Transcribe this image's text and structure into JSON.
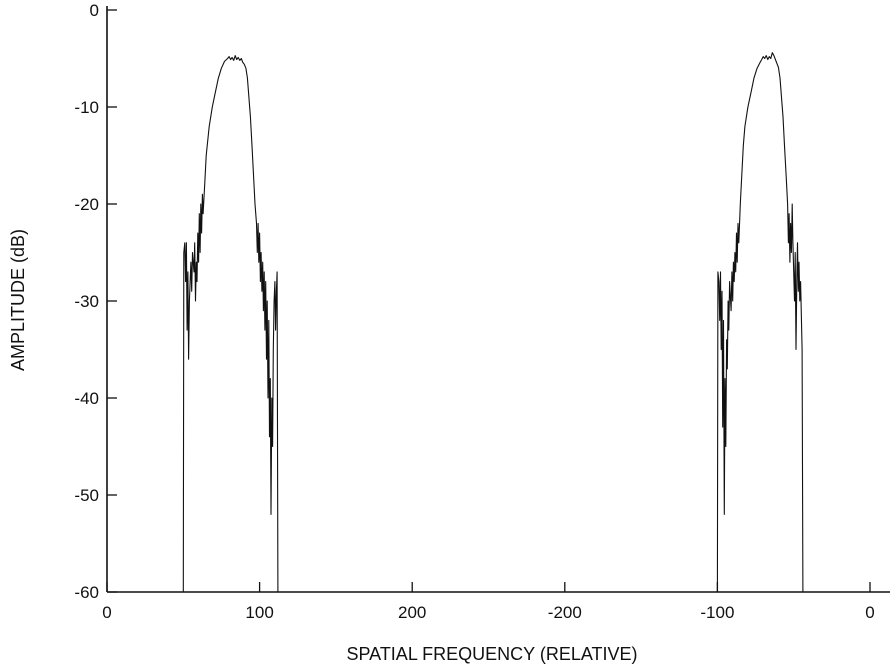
{
  "chart_data": {
    "type": "line",
    "xlabel": "SPATIAL FREQUENCY (RELATIVE)",
    "ylabel": "AMPLITUDE (dB)",
    "ylim": [
      -60,
      0
    ],
    "yticks": [
      0,
      -10,
      -20,
      -30,
      -40,
      -50,
      -60
    ],
    "xticks": [
      "0",
      "100",
      "200",
      "-200",
      "-100",
      "0"
    ],
    "xlim": [
      0,
      500
    ],
    "x_axis_note": "FFT-ordered frequency axis: positions 0..500 labeled 0,100,200,-200,-100,0",
    "grid": false,
    "legend": "none",
    "series": [
      {
        "points": [
          [
            50,
            -60
          ],
          [
            50.3,
            -25
          ],
          [
            51,
            -24
          ],
          [
            51.5,
            -28
          ],
          [
            52,
            -24
          ],
          [
            52.5,
            -33
          ],
          [
            53,
            -27
          ],
          [
            53.5,
            -36
          ],
          [
            54,
            -30
          ],
          [
            55,
            -26
          ],
          [
            55.5,
            -29
          ],
          [
            56,
            -25
          ],
          [
            57,
            -27
          ],
          [
            57.5,
            -24
          ],
          [
            58,
            -30
          ],
          [
            58.5,
            -26
          ],
          [
            59,
            -28
          ],
          [
            59.5,
            -23
          ],
          [
            60,
            -26
          ],
          [
            60.5,
            -21
          ],
          [
            61,
            -25
          ],
          [
            61.5,
            -20
          ],
          [
            62,
            -23
          ],
          [
            62.5,
            -19
          ],
          [
            63,
            -21
          ],
          [
            64,
            -18
          ],
          [
            65,
            -15
          ],
          [
            67,
            -12
          ],
          [
            69,
            -10
          ],
          [
            71,
            -8.5
          ],
          [
            73,
            -7
          ],
          [
            75,
            -6
          ],
          [
            77,
            -5.3
          ],
          [
            79,
            -5
          ],
          [
            80,
            -4.8
          ],
          [
            81,
            -5.1
          ],
          [
            82,
            -4.9
          ],
          [
            83,
            -5.2
          ],
          [
            84,
            -4.7
          ],
          [
            85,
            -5.1
          ],
          [
            86,
            -4.9
          ],
          [
            87,
            -5.2
          ],
          [
            88,
            -5.0
          ],
          [
            89,
            -5.4
          ],
          [
            90,
            -5.6
          ],
          [
            91,
            -6
          ],
          [
            92,
            -7
          ],
          [
            93,
            -9
          ],
          [
            94,
            -11
          ],
          [
            95,
            -14
          ],
          [
            96,
            -17
          ],
          [
            97,
            -20
          ],
          [
            98,
            -22
          ],
          [
            98.5,
            -25
          ],
          [
            99,
            -22
          ],
          [
            99.5,
            -26
          ],
          [
            100,
            -23
          ],
          [
            100.5,
            -28
          ],
          [
            101,
            -25
          ],
          [
            101.5,
            -29
          ],
          [
            102,
            -26
          ],
          [
            102.5,
            -31
          ],
          [
            103,
            -27
          ],
          [
            103.5,
            -33
          ],
          [
            104,
            -28
          ],
          [
            104.5,
            -36
          ],
          [
            105,
            -30
          ],
          [
            105.5,
            -40
          ],
          [
            106,
            -32
          ],
          [
            106.5,
            -44
          ],
          [
            107,
            -38
          ],
          [
            107.5,
            -52
          ],
          [
            108,
            -40
          ],
          [
            108.5,
            -45
          ],
          [
            109,
            -35
          ],
          [
            109.5,
            -30
          ],
          [
            110,
            -28
          ],
          [
            110.5,
            -33
          ],
          [
            111,
            -29
          ],
          [
            111.5,
            -27
          ],
          [
            112,
            -60
          ]
        ]
      },
      {
        "points": [
          [
            -100,
            -60
          ],
          [
            -99.7,
            -27
          ],
          [
            -99,
            -28
          ],
          [
            -98.5,
            -32
          ],
          [
            -98,
            -27
          ],
          [
            -97.5,
            -35
          ],
          [
            -97,
            -29
          ],
          [
            -96.5,
            -43
          ],
          [
            -96,
            -32
          ],
          [
            -95.5,
            -52
          ],
          [
            -95,
            -38
          ],
          [
            -94.5,
            -45
          ],
          [
            -94,
            -34
          ],
          [
            -93.5,
            -37
          ],
          [
            -93,
            -30
          ],
          [
            -92.5,
            -33
          ],
          [
            -92,
            -28
          ],
          [
            -91,
            -31
          ],
          [
            -90.5,
            -27
          ],
          [
            -90,
            -30
          ],
          [
            -89.5,
            -26
          ],
          [
            -89,
            -28
          ],
          [
            -88.5,
            -25
          ],
          [
            -88,
            -27
          ],
          [
            -87.5,
            -23
          ],
          [
            -87,
            -26
          ],
          [
            -86.5,
            -22
          ],
          [
            -86,
            -24
          ],
          [
            -85,
            -20
          ],
          [
            -84,
            -17
          ],
          [
            -83,
            -14
          ],
          [
            -82,
            -12
          ],
          [
            -80,
            -10
          ],
          [
            -78,
            -8.5
          ],
          [
            -76,
            -7
          ],
          [
            -74,
            -6
          ],
          [
            -72,
            -5.4
          ],
          [
            -71,
            -5.1
          ],
          [
            -70,
            -4.8
          ],
          [
            -69,
            -5.0
          ],
          [
            -68,
            -4.7
          ],
          [
            -67,
            -5.1
          ],
          [
            -66,
            -4.8
          ],
          [
            -65,
            -5.0
          ],
          [
            -64,
            -4.4
          ],
          [
            -63,
            -4.7
          ],
          [
            -62,
            -5.1
          ],
          [
            -61,
            -5.5
          ],
          [
            -60,
            -5.9
          ],
          [
            -59,
            -7
          ],
          [
            -58,
            -9
          ],
          [
            -57,
            -11
          ],
          [
            -56,
            -14
          ],
          [
            -55,
            -17
          ],
          [
            -54,
            -20
          ],
          [
            -53.5,
            -24
          ],
          [
            -53,
            -21
          ],
          [
            -52.5,
            -26
          ],
          [
            -52,
            -22
          ],
          [
            -51.5,
            -25
          ],
          [
            -51,
            -20
          ],
          [
            -50.5,
            -24
          ],
          [
            -50,
            -27
          ],
          [
            -49.5,
            -30
          ],
          [
            -49,
            -25
          ],
          [
            -48.5,
            -35
          ],
          [
            -48,
            -28
          ],
          [
            -47.5,
            -24
          ],
          [
            -47,
            -29
          ],
          [
            -46.5,
            -26
          ],
          [
            -46,
            -30
          ],
          [
            -45.5,
            -28
          ],
          [
            -44.5,
            -35
          ],
          [
            -44,
            -60
          ]
        ]
      }
    ]
  }
}
